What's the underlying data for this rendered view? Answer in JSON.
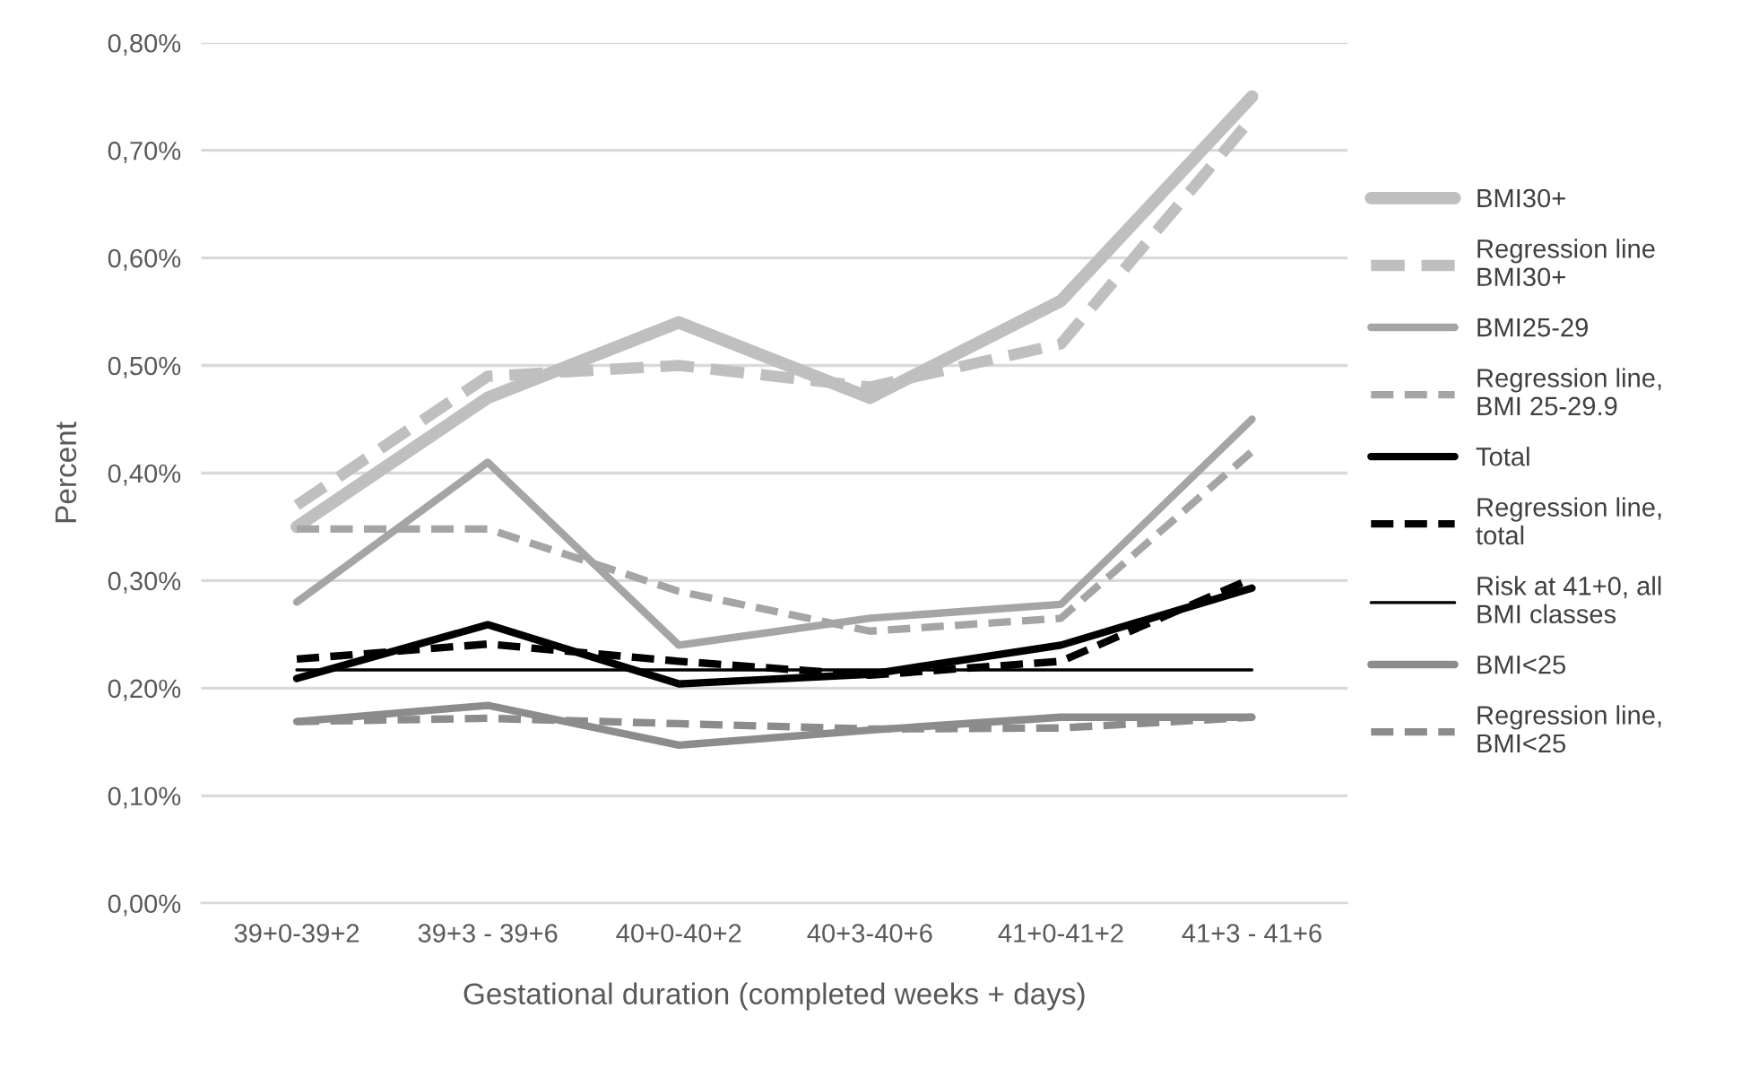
{
  "chart_data": {
    "type": "line",
    "xlabel": "Gestational duration (completed weeks + days)",
    "ylabel": "Percent",
    "categories": [
      "39+0-39+2",
      "39+3 - 39+6",
      "40+0-40+2",
      "40+3-40+6",
      "41+0-41+2",
      "41+3 - 41+6"
    ],
    "series": [
      {
        "name": "BMI30+",
        "color": "#bfbfbf",
        "line_style": "solid",
        "values": [
          0.35,
          0.47,
          0.54,
          0.47,
          0.56,
          0.75
        ]
      },
      {
        "name": "Regression line BMI30+",
        "color": "#bfbfbf",
        "line_style": "dashed",
        "values": [
          0.37,
          0.49,
          0.5,
          0.48,
          0.52,
          0.73
        ]
      },
      {
        "name": "BMI25-29",
        "color": "#a5a5a5",
        "line_style": "solid",
        "values": [
          0.28,
          0.41,
          0.24,
          0.265,
          0.278,
          0.45
        ]
      },
      {
        "name": "Regression line, BMI 25-29.9",
        "color": "#a5a5a5",
        "line_style": "dashed",
        "values": [
          0.348,
          0.348,
          0.29,
          0.253,
          0.265,
          0.42
        ]
      },
      {
        "name": "Total",
        "color": "#000000",
        "line_style": "solid",
        "values": [
          0.209,
          0.259,
          0.204,
          0.213,
          0.24,
          0.293
        ]
      },
      {
        "name": "Regression line, total",
        "color": "#000000",
        "line_style": "dashed",
        "values": [
          0.227,
          0.241,
          0.225,
          0.212,
          0.225,
          0.302
        ]
      },
      {
        "name": "Risk at 41+0, all BMI classes",
        "color": "#000000",
        "line_style": "solid",
        "values": [
          0.217,
          0.217,
          0.217,
          0.217,
          0.217,
          0.217
        ]
      },
      {
        "name": "BMI<25",
        "color": "#8c8c8c",
        "line_style": "solid",
        "values": [
          0.169,
          0.184,
          0.147,
          0.161,
          0.173,
          0.173
        ]
      },
      {
        "name": "Regression line, BMI<25",
        "color": "#8c8c8c",
        "line_style": "dashed",
        "values": [
          0.169,
          0.172,
          0.167,
          0.162,
          0.163,
          0.173
        ]
      }
    ],
    "ylim": [
      0,
      0.8
    ],
    "yticks": [
      {
        "value": 0,
        "label": "0,00%"
      },
      {
        "value": 0.1,
        "label": "0,10%"
      },
      {
        "value": 0.2,
        "label": "0,20%"
      },
      {
        "value": 0.3,
        "label": "0,30%"
      },
      {
        "value": 0.4,
        "label": "0,40%"
      },
      {
        "value": 0.5,
        "label": "0,50%"
      },
      {
        "value": 0.6,
        "label": "0,60%"
      },
      {
        "value": 0.7,
        "label": "0,70%"
      },
      {
        "value": 0.8,
        "label": "0,80%"
      }
    ],
    "grid": "y",
    "legend": "right",
    "marker": "none"
  }
}
